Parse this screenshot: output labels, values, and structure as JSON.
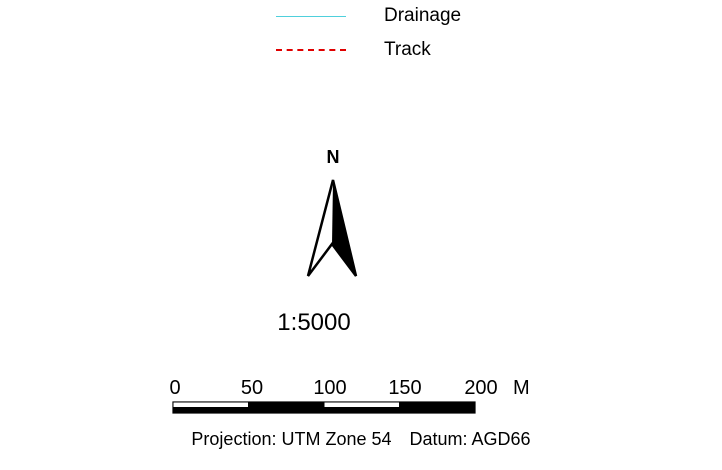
{
  "legend": {
    "items": [
      {
        "label": "Drainage",
        "style": "solid",
        "color": "#4fd0dc"
      },
      {
        "label": "Track",
        "style": "dashed",
        "color": "#e00000"
      }
    ]
  },
  "north_arrow": {
    "label": "N",
    "icon": "north-arrow-icon"
  },
  "scale": {
    "ratio": "1:5000",
    "ticks": [
      "0",
      "50",
      "100",
      "150",
      "200"
    ],
    "unit": "M"
  },
  "footer": {
    "projection": "Projection: UTM Zone 54",
    "datum": "Datum: AGD66"
  }
}
